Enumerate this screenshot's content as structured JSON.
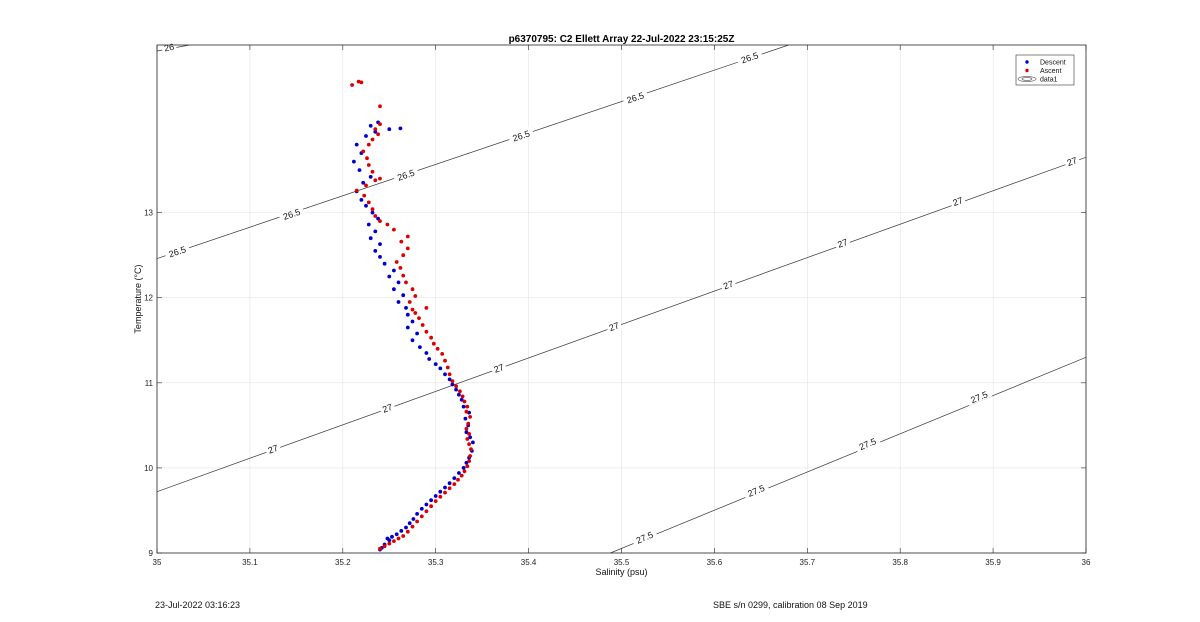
{
  "footer": {
    "left": "23-Jul-2022 03:16:23",
    "right": "SBE s/n 0299, calibration 08 Sep 2019"
  },
  "chart_data": {
    "type": "scatter",
    "title": "p6370795: C2 Ellett Array 22-Jul-2022 23:15:25Z",
    "xlabel": "Salinity (psu)",
    "ylabel": "Temperature (°C)",
    "xlim": [
      35.0,
      36.0
    ],
    "ylim": [
      9.0,
      14.97
    ],
    "x_ticks": [
      35,
      35.1,
      35.2,
      35.3,
      35.4,
      35.5,
      35.6,
      35.7,
      35.8,
      35.9,
      36
    ],
    "x_tick_labels": [
      "35",
      "35.1",
      "35.2",
      "35.3",
      "35.4",
      "35.5",
      "35.6",
      "35.7",
      "35.8",
      "35.9",
      "36"
    ],
    "y_ticks": [
      9,
      10,
      11,
      12,
      13
    ],
    "y_tick_labels": [
      "9",
      "10",
      "11",
      "12",
      "13"
    ],
    "grid": true,
    "legend": {
      "placement": "top-right",
      "entries": [
        {
          "name": "Descent",
          "color": "#0000cc",
          "marker": "dot"
        },
        {
          "name": "Ascent",
          "color": "#dd0000",
          "marker": "dot"
        },
        {
          "name": "data1",
          "color": "#555555",
          "marker": "contour"
        }
      ]
    },
    "contours": [
      {
        "level": "26",
        "points": [
          [
            35.0,
            14.9
          ],
          [
            35.035,
            14.97
          ]
        ],
        "labels": [
          {
            "text": "26",
            "x": 35.013,
            "y": 14.94
          }
        ]
      },
      {
        "level": "26.5",
        "points": [
          [
            35.0,
            12.46
          ],
          [
            35.68,
            14.97
          ]
        ],
        "labels": [
          {
            "text": "26.5",
            "x": 35.022,
            "y": 12.54
          },
          {
            "text": "26.5",
            "x": 35.145,
            "y": 12.98
          },
          {
            "text": "26.5",
            "x": 35.268,
            "y": 13.44
          },
          {
            "text": "26.5",
            "x": 35.392,
            "y": 13.9
          },
          {
            "text": "26.5",
            "x": 35.515,
            "y": 14.35
          },
          {
            "text": "26.5",
            "x": 35.638,
            "y": 14.82
          }
        ]
      },
      {
        "level": "27",
        "points": [
          [
            35.0,
            9.72
          ],
          [
            36.0,
            13.65
          ]
        ],
        "labels": [
          {
            "text": "27",
            "x": 35.125,
            "y": 10.22
          },
          {
            "text": "27",
            "x": 35.248,
            "y": 10.7
          },
          {
            "text": "27",
            "x": 35.368,
            "y": 11.17
          },
          {
            "text": "27",
            "x": 35.492,
            "y": 11.66
          },
          {
            "text": "27",
            "x": 35.615,
            "y": 12.15
          },
          {
            "text": "27",
            "x": 35.738,
            "y": 12.64
          },
          {
            "text": "27",
            "x": 35.862,
            "y": 13.13
          },
          {
            "text": "27",
            "x": 35.985,
            "y": 13.6
          }
        ]
      },
      {
        "level": "27.5",
        "points": [
          [
            35.488,
            9.0
          ],
          [
            36.0,
            11.3
          ]
        ],
        "labels": [
          {
            "text": "27.5",
            "x": 35.525,
            "y": 9.18
          },
          {
            "text": "27.5",
            "x": 35.645,
            "y": 9.73
          },
          {
            "text": "27.5",
            "x": 35.765,
            "y": 10.28
          },
          {
            "text": "27.5",
            "x": 35.885,
            "y": 10.83
          }
        ]
      }
    ],
    "series": [
      {
        "name": "Descent",
        "color": "#0000cc",
        "points": [
          [
            35.24,
            9.04
          ],
          [
            35.242,
            9.06
          ],
          [
            35.245,
            9.1
          ],
          [
            35.25,
            9.15
          ],
          [
            35.253,
            9.19
          ],
          [
            35.248,
            9.17
          ],
          [
            35.258,
            9.22
          ],
          [
            35.263,
            9.26
          ],
          [
            35.268,
            9.3
          ],
          [
            35.272,
            9.35
          ],
          [
            35.276,
            9.4
          ],
          [
            35.28,
            9.46
          ],
          [
            35.285,
            9.52
          ],
          [
            35.29,
            9.57
          ],
          [
            35.295,
            9.62
          ],
          [
            35.3,
            9.67
          ],
          [
            35.305,
            9.72
          ],
          [
            35.31,
            9.77
          ],
          [
            35.315,
            9.82
          ],
          [
            35.32,
            9.88
          ],
          [
            35.325,
            9.94
          ],
          [
            35.33,
            10.0
          ],
          [
            35.333,
            10.06
          ],
          [
            35.336,
            10.12
          ],
          [
            35.339,
            10.2
          ],
          [
            35.34,
            10.3
          ],
          [
            35.337,
            10.36
          ],
          [
            35.333,
            10.42
          ],
          [
            35.335,
            10.5
          ],
          [
            35.332,
            10.58
          ],
          [
            35.336,
            10.65
          ],
          [
            35.33,
            10.72
          ],
          [
            35.328,
            10.8
          ],
          [
            35.325,
            10.86
          ],
          [
            35.322,
            10.92
          ],
          [
            35.318,
            10.98
          ],
          [
            35.315,
            11.04
          ],
          [
            35.31,
            11.1
          ],
          [
            35.305,
            11.17
          ],
          [
            35.3,
            11.22
          ],
          [
            35.293,
            11.28
          ],
          [
            35.29,
            11.35
          ],
          [
            35.283,
            11.42
          ],
          [
            35.275,
            11.5
          ],
          [
            35.28,
            11.58
          ],
          [
            35.27,
            11.65
          ],
          [
            35.275,
            11.72
          ],
          [
            35.27,
            11.8
          ],
          [
            35.268,
            11.88
          ],
          [
            35.26,
            11.95
          ],
          [
            35.265,
            12.03
          ],
          [
            35.255,
            12.1
          ],
          [
            35.26,
            12.18
          ],
          [
            35.25,
            12.25
          ],
          [
            35.255,
            12.32
          ],
          [
            35.245,
            12.4
          ],
          [
            35.24,
            12.48
          ],
          [
            35.235,
            12.55
          ],
          [
            35.24,
            12.63
          ],
          [
            35.23,
            12.7
          ],
          [
            35.235,
            12.78
          ],
          [
            35.228,
            12.86
          ],
          [
            35.238,
            12.93
          ],
          [
            35.232,
            13.0
          ],
          [
            35.225,
            13.08
          ],
          [
            35.22,
            13.15
          ],
          [
            35.215,
            13.25
          ],
          [
            35.222,
            13.35
          ],
          [
            35.23,
            13.42
          ],
          [
            35.218,
            13.5
          ],
          [
            35.212,
            13.6
          ],
          [
            35.22,
            13.7
          ],
          [
            35.215,
            13.8
          ],
          [
            35.225,
            13.9
          ],
          [
            35.235,
            13.95
          ],
          [
            35.25,
            13.98
          ],
          [
            35.262,
            13.99
          ],
          [
            35.23,
            14.02
          ],
          [
            35.238,
            14.06
          ]
        ]
      },
      {
        "name": "Ascent",
        "color": "#dd0000",
        "points": [
          [
            35.24,
            9.05
          ],
          [
            35.245,
            9.08
          ],
          [
            35.25,
            9.11
          ],
          [
            35.255,
            9.14
          ],
          [
            35.26,
            9.17
          ],
          [
            35.265,
            9.2
          ],
          [
            35.27,
            9.25
          ],
          [
            35.275,
            9.31
          ],
          [
            35.28,
            9.37
          ],
          [
            35.285,
            9.43
          ],
          [
            35.29,
            9.49
          ],
          [
            35.295,
            9.55
          ],
          [
            35.3,
            9.61
          ],
          [
            35.305,
            9.66
          ],
          [
            35.31,
            9.71
          ],
          [
            35.315,
            9.76
          ],
          [
            35.32,
            9.81
          ],
          [
            35.324,
            9.86
          ],
          [
            35.328,
            9.91
          ],
          [
            35.331,
            9.96
          ],
          [
            35.334,
            10.02
          ],
          [
            35.336,
            10.08
          ],
          [
            35.337,
            10.14
          ],
          [
            35.338,
            10.22
          ],
          [
            35.336,
            10.28
          ],
          [
            35.334,
            10.34
          ],
          [
            35.336,
            10.4
          ],
          [
            35.333,
            10.46
          ],
          [
            35.335,
            10.52
          ],
          [
            35.337,
            10.6
          ],
          [
            35.333,
            10.66
          ],
          [
            35.334,
            10.72
          ],
          [
            35.331,
            10.78
          ],
          [
            35.329,
            10.84
          ],
          [
            35.326,
            10.9
          ],
          [
            35.322,
            10.96
          ],
          [
            35.318,
            11.02
          ],
          [
            35.315,
            11.1
          ],
          [
            35.313,
            11.18
          ],
          [
            35.31,
            11.26
          ],
          [
            35.307,
            11.34
          ],
          [
            35.302,
            11.4
          ],
          [
            35.298,
            11.46
          ],
          [
            35.295,
            11.53
          ],
          [
            35.29,
            11.6
          ],
          [
            35.286,
            11.68
          ],
          [
            35.282,
            11.76
          ],
          [
            35.278,
            11.82
          ],
          [
            35.275,
            11.86
          ],
          [
            35.29,
            11.88
          ],
          [
            35.272,
            11.95
          ],
          [
            35.278,
            12.02
          ],
          [
            35.275,
            12.1
          ],
          [
            35.268,
            12.18
          ],
          [
            35.265,
            12.26
          ],
          [
            35.262,
            12.35
          ],
          [
            35.258,
            12.42
          ],
          [
            35.265,
            12.5
          ],
          [
            35.27,
            12.58
          ],
          [
            35.263,
            12.66
          ],
          [
            35.27,
            12.72
          ],
          [
            35.255,
            12.8
          ],
          [
            35.248,
            12.86
          ],
          [
            35.24,
            12.9
          ],
          [
            35.235,
            12.96
          ],
          [
            35.232,
            13.04
          ],
          [
            35.228,
            13.12
          ],
          [
            35.223,
            13.2
          ],
          [
            35.215,
            13.26
          ],
          [
            35.225,
            13.32
          ],
          [
            35.235,
            13.38
          ],
          [
            35.24,
            13.4
          ],
          [
            35.232,
            13.48
          ],
          [
            35.228,
            13.56
          ],
          [
            35.226,
            13.64
          ],
          [
            35.222,
            13.72
          ],
          [
            35.228,
            13.8
          ],
          [
            35.232,
            13.86
          ],
          [
            35.238,
            13.92
          ],
          [
            35.235,
            13.98
          ],
          [
            35.24,
            14.04
          ],
          [
            35.24,
            14.25
          ],
          [
            35.21,
            14.5
          ],
          [
            35.217,
            14.54
          ],
          [
            35.22,
            14.53
          ]
        ]
      }
    ]
  }
}
